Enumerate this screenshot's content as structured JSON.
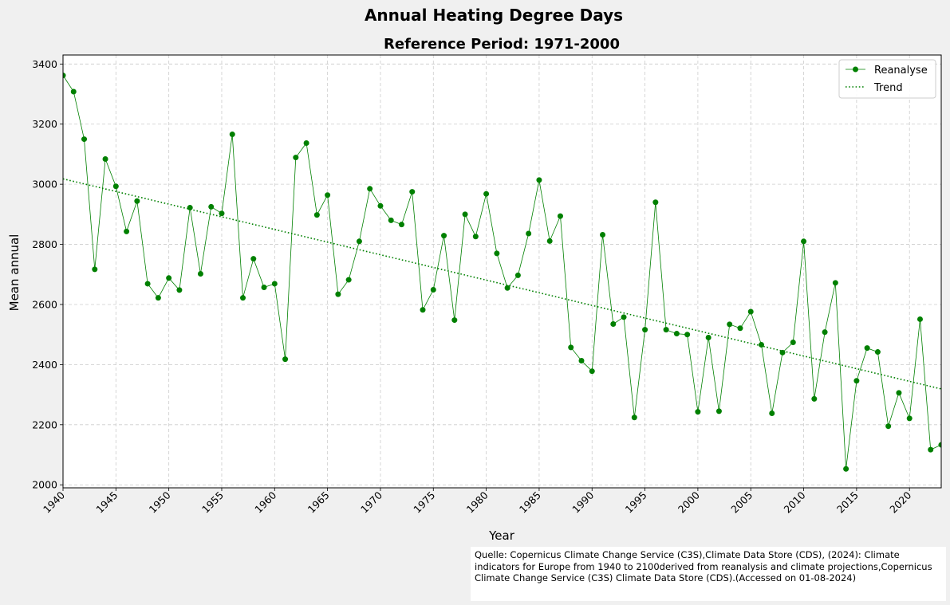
{
  "chart_data": {
    "type": "line",
    "title": "Annual Heating Degree Days",
    "subtitle": "Reference Period: 1971-2000",
    "xlabel": "Year",
    "ylabel": "Mean annual",
    "xlim": [
      1940,
      2023
    ],
    "ylim": [
      1990,
      3430
    ],
    "x_ticks": [
      1940,
      1945,
      1950,
      1955,
      1960,
      1965,
      1970,
      1975,
      1980,
      1985,
      1990,
      1995,
      2000,
      2005,
      2010,
      2015,
      2020
    ],
    "y_ticks": [
      2000,
      2200,
      2400,
      2600,
      2800,
      3000,
      3200,
      3400
    ],
    "grid": true,
    "legend_position": "top-right",
    "series": [
      {
        "name": "Reanalyse",
        "color": "#008000",
        "marker": "circle",
        "x": [
          1940,
          1941,
          1942,
          1943,
          1944,
          1945,
          1946,
          1947,
          1948,
          1949,
          1950,
          1951,
          1952,
          1953,
          1954,
          1955,
          1956,
          1957,
          1958,
          1959,
          1960,
          1961,
          1962,
          1963,
          1964,
          1965,
          1966,
          1967,
          1968,
          1969,
          1970,
          1971,
          1972,
          1973,
          1974,
          1975,
          1976,
          1977,
          1978,
          1979,
          1980,
          1981,
          1982,
          1983,
          1984,
          1985,
          1986,
          1987,
          1988,
          1989,
          1990,
          1991,
          1992,
          1993,
          1994,
          1995,
          1996,
          1997,
          1998,
          1999,
          2000,
          2001,
          2002,
          2003,
          2004,
          2005,
          2006,
          2007,
          2008,
          2009,
          2010,
          2011,
          2012,
          2013,
          2014,
          2015,
          2016,
          2017,
          2018,
          2019,
          2020,
          2021,
          2022,
          2023
        ],
        "y": [
          3362,
          3308,
          3150,
          2717,
          3084,
          2993,
          2843,
          2944,
          2669,
          2622,
          2688,
          2648,
          2922,
          2702,
          2925,
          2903,
          3166,
          2622,
          2752,
          2657,
          2669,
          2418,
          3089,
          3137,
          2898,
          2964,
          2634,
          2682,
          2810,
          2985,
          2928,
          2880,
          2866,
          2975,
          2582,
          2649,
          2829,
          2548,
          2900,
          2826,
          2968,
          2770,
          2655,
          2697,
          2836,
          3014,
          2811,
          2894,
          2457,
          2413,
          2378,
          2832,
          2535,
          2558,
          2224,
          2516,
          2940,
          2516,
          2503,
          2500,
          2243,
          2490,
          2245,
          2534,
          2521,
          2576,
          2466,
          2238,
          2440,
          2474,
          2810,
          2286,
          2508,
          2672,
          2053,
          2346,
          2455,
          2442,
          2195,
          2306,
          2221,
          2551,
          2117,
          2133
        ]
      },
      {
        "name": "Trend",
        "color": "#008000",
        "linestyle": "dotted",
        "x": [
          1940,
          2023
        ],
        "y": [
          3018,
          2319
        ]
      }
    ]
  },
  "source_note": "Quelle: Copernicus Climate Change Service (C3S),Climate Data Store (CDS), (2024): Climate indicators for Europe from 1940 to 2100derived from reanalysis and climate projections,Copernicus Climate Change Service (C3S) Climate Data Store (CDS).(Accessed on 01-08-2024)"
}
